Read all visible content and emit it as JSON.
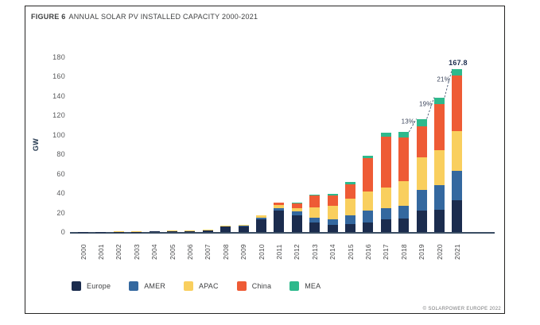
{
  "figure": {
    "title_prefix": "FIGURE 6",
    "title_rest": "ANNUAL SOLAR PV INSTALLED CAPACITY 2000-2021",
    "source": "© SOLARPOWER EUROPE 2022"
  },
  "chart_data": {
    "type": "bar",
    "stacked": true,
    "title": "FIGURE 6 ANNUAL SOLAR PV INSTALLED CAPACITY 2000-2021",
    "xlabel": "",
    "ylabel": "GW",
    "ylim": [
      0,
      180
    ],
    "ytick_step": 20,
    "grid": false,
    "legend_position": "bottom",
    "categories": [
      "2000",
      "2001",
      "2002",
      "2003",
      "2004",
      "2005",
      "2006",
      "2007",
      "2008",
      "2009",
      "2010",
      "2011",
      "2012",
      "2013",
      "2014",
      "2015",
      "2016",
      "2017",
      "2018",
      "2019",
      "2020",
      "2021"
    ],
    "series": [
      {
        "name": "Europe",
        "color": "#1b2c4e",
        "values": [
          0.1,
          0.1,
          0.1,
          0.15,
          0.6,
          0.9,
          1.0,
          1.8,
          5.6,
          5.8,
          13.5,
          22,
          17.5,
          10,
          7,
          8.5,
          10,
          13,
          14,
          22,
          23,
          33
        ]
      },
      {
        "name": "AMER",
        "color": "#34689f",
        "values": [
          0.02,
          0.03,
          0.05,
          0.06,
          0.1,
          0.12,
          0.15,
          0.25,
          0.35,
          0.55,
          1.2,
          2.5,
          3.5,
          5,
          6.5,
          9,
          12,
          11.5,
          13,
          21,
          25,
          30
        ]
      },
      {
        "name": "APAC",
        "color": "#f9cf5e",
        "values": [
          0.15,
          0.2,
          0.3,
          0.35,
          0.4,
          0.4,
          0.45,
          0.5,
          0.7,
          1.1,
          2.2,
          3.0,
          3.5,
          10,
          13.5,
          17,
          19.5,
          21,
          25,
          34,
          36,
          41
        ]
      },
      {
        "name": "China",
        "color": "#ee5b35",
        "values": [
          0,
          0,
          0,
          0,
          0,
          0.05,
          0.05,
          0.05,
          0.05,
          0.2,
          0.5,
          2.5,
          5,
          13,
          11,
          15,
          34.5,
          53,
          45,
          32,
          48,
          57
        ]
      },
      {
        "name": "MEA",
        "color": "#2eb98c",
        "values": [
          0,
          0,
          0,
          0,
          0,
          0,
          0,
          0,
          0,
          0,
          0.1,
          0.3,
          0.5,
          0.6,
          1,
          1.7,
          2.8,
          3.5,
          6,
          7.6,
          6.7,
          6.8
        ]
      }
    ],
    "annotations": {
      "total_label": {
        "category": "2021",
        "text": "167.8"
      },
      "growth_labels": [
        {
          "from": "2018",
          "to": "2019",
          "text": "13%"
        },
        {
          "from": "2019",
          "to": "2020",
          "text": "19%"
        },
        {
          "from": "2020",
          "to": "2021",
          "text": "21%"
        }
      ]
    },
    "colors": {
      "axis": "#3a4d63",
      "dashed_line": "#4a5a74",
      "frame_border": "#262524"
    }
  }
}
